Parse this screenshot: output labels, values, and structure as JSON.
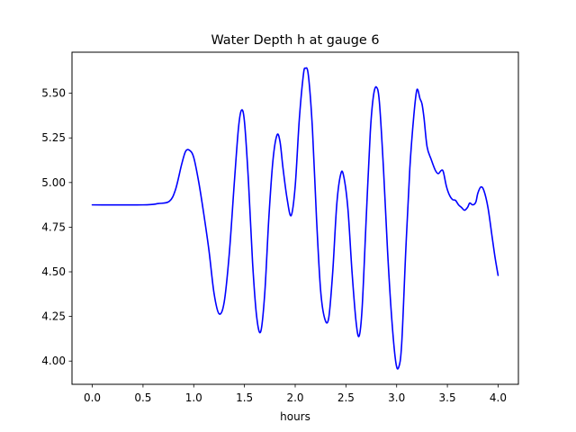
{
  "chart_data": {
    "type": "line",
    "title": "Water Depth h at gauge 6",
    "xlabel": "hours",
    "ylabel": "",
    "xlim": [
      -0.2,
      4.2
    ],
    "ylim": [
      3.87,
      5.73
    ],
    "x_ticks": [
      0.0,
      0.5,
      1.0,
      1.5,
      2.0,
      2.5,
      3.0,
      3.5,
      4.0
    ],
    "x_tick_labels": [
      "0.0",
      "0.5",
      "1.0",
      "1.5",
      "2.0",
      "2.5",
      "3.0",
      "3.5",
      "4.0"
    ],
    "y_ticks": [
      4.0,
      4.25,
      4.5,
      4.75,
      5.0,
      5.25,
      5.5
    ],
    "y_tick_labels": [
      "4.00",
      "4.25",
      "4.50",
      "4.75",
      "5.00",
      "5.25",
      "5.50"
    ],
    "grid": false,
    "series": [
      {
        "color": "#0000ff",
        "points": [
          [
            0.0,
            4.875
          ],
          [
            0.5,
            4.875
          ],
          [
            0.65,
            4.882
          ],
          [
            0.76,
            4.895
          ],
          [
            0.82,
            4.96
          ],
          [
            0.88,
            5.1
          ],
          [
            0.92,
            5.175
          ],
          [
            0.96,
            5.18
          ],
          [
            1.0,
            5.14
          ],
          [
            1.05,
            5.0
          ],
          [
            1.1,
            4.82
          ],
          [
            1.15,
            4.62
          ],
          [
            1.2,
            4.38
          ],
          [
            1.25,
            4.265
          ],
          [
            1.3,
            4.33
          ],
          [
            1.35,
            4.6
          ],
          [
            1.4,
            5.0
          ],
          [
            1.44,
            5.3
          ],
          [
            1.47,
            5.405
          ],
          [
            1.5,
            5.34
          ],
          [
            1.54,
            5.0
          ],
          [
            1.58,
            4.55
          ],
          [
            1.62,
            4.25
          ],
          [
            1.66,
            4.165
          ],
          [
            1.7,
            4.38
          ],
          [
            1.74,
            4.8
          ],
          [
            1.78,
            5.12
          ],
          [
            1.82,
            5.265
          ],
          [
            1.85,
            5.23
          ],
          [
            1.88,
            5.08
          ],
          [
            1.92,
            4.91
          ],
          [
            1.96,
            4.815
          ],
          [
            2.0,
            4.98
          ],
          [
            2.04,
            5.35
          ],
          [
            2.08,
            5.6
          ],
          [
            2.1,
            5.64
          ],
          [
            2.13,
            5.6
          ],
          [
            2.17,
            5.3
          ],
          [
            2.21,
            4.8
          ],
          [
            2.25,
            4.4
          ],
          [
            2.29,
            4.24
          ],
          [
            2.33,
            4.24
          ],
          [
            2.37,
            4.5
          ],
          [
            2.41,
            4.88
          ],
          [
            2.45,
            5.05
          ],
          [
            2.48,
            5.03
          ],
          [
            2.52,
            4.85
          ],
          [
            2.56,
            4.5
          ],
          [
            2.6,
            4.22
          ],
          [
            2.63,
            4.14
          ],
          [
            2.66,
            4.3
          ],
          [
            2.7,
            4.8
          ],
          [
            2.74,
            5.28
          ],
          [
            2.77,
            5.48
          ],
          [
            2.8,
            5.535
          ],
          [
            2.83,
            5.45
          ],
          [
            2.87,
            5.08
          ],
          [
            2.91,
            4.62
          ],
          [
            2.95,
            4.25
          ],
          [
            2.99,
            4.0
          ],
          [
            3.02,
            3.965
          ],
          [
            3.05,
            4.1
          ],
          [
            3.09,
            4.62
          ],
          [
            3.13,
            5.08
          ],
          [
            3.17,
            5.38
          ],
          [
            3.2,
            5.52
          ],
          [
            3.23,
            5.47
          ],
          [
            3.25,
            5.44
          ],
          [
            3.27,
            5.36
          ],
          [
            3.3,
            5.2
          ],
          [
            3.34,
            5.13
          ],
          [
            3.38,
            5.07
          ],
          [
            3.41,
            5.05
          ],
          [
            3.44,
            5.068
          ],
          [
            3.46,
            5.06
          ],
          [
            3.49,
            4.98
          ],
          [
            3.52,
            4.93
          ],
          [
            3.55,
            4.905
          ],
          [
            3.58,
            4.9
          ],
          [
            3.61,
            4.875
          ],
          [
            3.64,
            4.86
          ],
          [
            3.67,
            4.845
          ],
          [
            3.7,
            4.862
          ],
          [
            3.72,
            4.885
          ],
          [
            3.75,
            4.875
          ],
          [
            3.78,
            4.89
          ],
          [
            3.8,
            4.94
          ],
          [
            3.83,
            4.975
          ],
          [
            3.86,
            4.955
          ],
          [
            3.9,
            4.86
          ],
          [
            3.94,
            4.7
          ],
          [
            3.97,
            4.58
          ],
          [
            4.0,
            4.48
          ]
        ]
      }
    ]
  }
}
